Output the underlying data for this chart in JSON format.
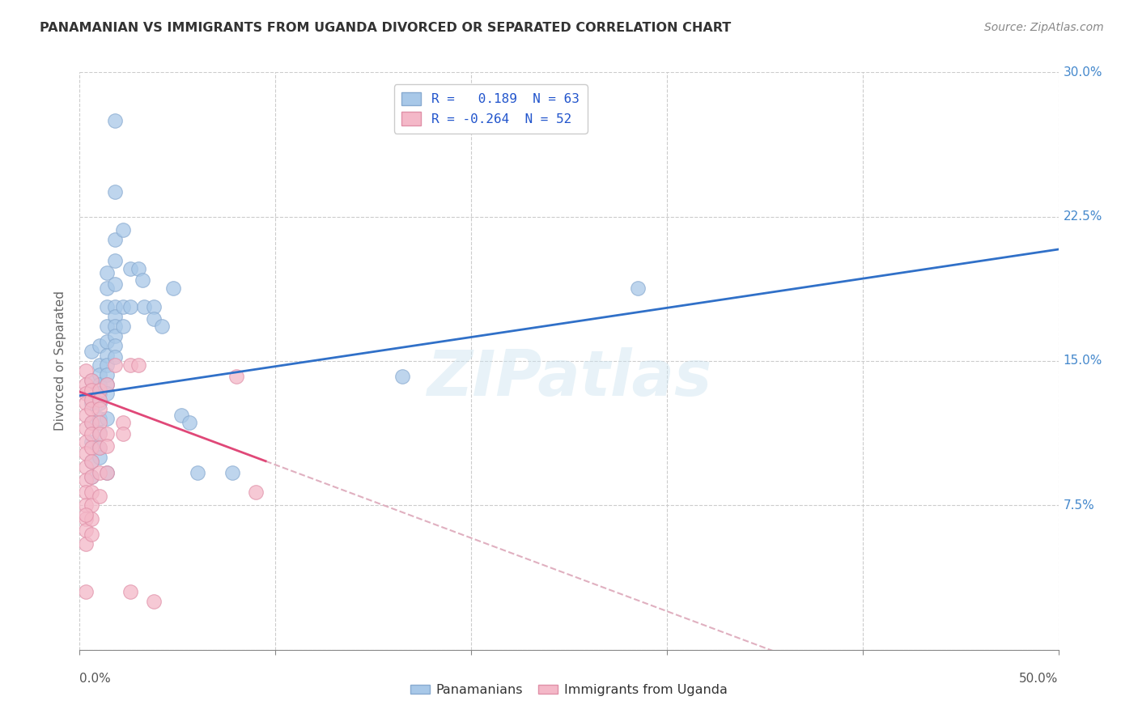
{
  "title": "PANAMANIAN VS IMMIGRANTS FROM UGANDA DIVORCED OR SEPARATED CORRELATION CHART",
  "source": "Source: ZipAtlas.com",
  "ylabel_label": "Divorced or Separated",
  "x_min": 0.0,
  "x_max": 0.5,
  "y_min": 0.0,
  "y_max": 0.3,
  "x_ticks": [
    0.0,
    0.1,
    0.2,
    0.3,
    0.4,
    0.5
  ],
  "x_tick_labels_bottom": [
    "0.0%",
    "",
    "",
    "",
    "",
    "50.0%"
  ],
  "y_ticks": [
    0.0,
    0.075,
    0.15,
    0.225,
    0.3
  ],
  "y_tick_labels_right": [
    "",
    "7.5%",
    "15.0%",
    "22.5%",
    "30.0%"
  ],
  "blue_color": "#a8c8e8",
  "pink_color": "#f4b8c8",
  "blue_edge_color": "#88aad0",
  "pink_edge_color": "#e090a8",
  "blue_line_color": "#3070c8",
  "pink_line_color": "#e04878",
  "pink_dashed_color": "#e0b0c0",
  "watermark": "ZIPatlas",
  "blue_points": [
    [
      0.006,
      0.13
    ],
    [
      0.006,
      0.155
    ],
    [
      0.006,
      0.14
    ],
    [
      0.006,
      0.128
    ],
    [
      0.006,
      0.118
    ],
    [
      0.006,
      0.108
    ],
    [
      0.006,
      0.098
    ],
    [
      0.006,
      0.09
    ],
    [
      0.01,
      0.158
    ],
    [
      0.01,
      0.148
    ],
    [
      0.01,
      0.143
    ],
    [
      0.01,
      0.138
    ],
    [
      0.01,
      0.133
    ],
    [
      0.01,
      0.128
    ],
    [
      0.01,
      0.12
    ],
    [
      0.01,
      0.113
    ],
    [
      0.01,
      0.105
    ],
    [
      0.01,
      0.1
    ],
    [
      0.014,
      0.196
    ],
    [
      0.014,
      0.188
    ],
    [
      0.014,
      0.178
    ],
    [
      0.014,
      0.168
    ],
    [
      0.014,
      0.16
    ],
    [
      0.014,
      0.153
    ],
    [
      0.014,
      0.148
    ],
    [
      0.014,
      0.143
    ],
    [
      0.014,
      0.138
    ],
    [
      0.014,
      0.133
    ],
    [
      0.014,
      0.12
    ],
    [
      0.014,
      0.092
    ],
    [
      0.018,
      0.275
    ],
    [
      0.018,
      0.238
    ],
    [
      0.018,
      0.213
    ],
    [
      0.018,
      0.202
    ],
    [
      0.018,
      0.19
    ],
    [
      0.018,
      0.178
    ],
    [
      0.018,
      0.173
    ],
    [
      0.018,
      0.168
    ],
    [
      0.018,
      0.163
    ],
    [
      0.018,
      0.158
    ],
    [
      0.018,
      0.152
    ],
    [
      0.022,
      0.218
    ],
    [
      0.022,
      0.178
    ],
    [
      0.022,
      0.168
    ],
    [
      0.026,
      0.198
    ],
    [
      0.026,
      0.178
    ],
    [
      0.03,
      0.198
    ],
    [
      0.032,
      0.192
    ],
    [
      0.033,
      0.178
    ],
    [
      0.038,
      0.178
    ],
    [
      0.038,
      0.172
    ],
    [
      0.042,
      0.168
    ],
    [
      0.048,
      0.188
    ],
    [
      0.052,
      0.122
    ],
    [
      0.056,
      0.118
    ],
    [
      0.06,
      0.092
    ],
    [
      0.078,
      0.092
    ],
    [
      0.165,
      0.142
    ],
    [
      0.285,
      0.188
    ]
  ],
  "pink_points": [
    [
      0.003,
      0.145
    ],
    [
      0.003,
      0.138
    ],
    [
      0.003,
      0.133
    ],
    [
      0.003,
      0.128
    ],
    [
      0.003,
      0.122
    ],
    [
      0.003,
      0.115
    ],
    [
      0.003,
      0.108
    ],
    [
      0.003,
      0.102
    ],
    [
      0.003,
      0.095
    ],
    [
      0.003,
      0.088
    ],
    [
      0.003,
      0.082
    ],
    [
      0.003,
      0.075
    ],
    [
      0.003,
      0.068
    ],
    [
      0.003,
      0.062
    ],
    [
      0.003,
      0.055
    ],
    [
      0.003,
      0.03
    ],
    [
      0.006,
      0.14
    ],
    [
      0.006,
      0.135
    ],
    [
      0.006,
      0.13
    ],
    [
      0.006,
      0.125
    ],
    [
      0.006,
      0.118
    ],
    [
      0.006,
      0.112
    ],
    [
      0.006,
      0.105
    ],
    [
      0.006,
      0.098
    ],
    [
      0.006,
      0.09
    ],
    [
      0.006,
      0.082
    ],
    [
      0.006,
      0.075
    ],
    [
      0.006,
      0.068
    ],
    [
      0.01,
      0.135
    ],
    [
      0.01,
      0.13
    ],
    [
      0.01,
      0.125
    ],
    [
      0.01,
      0.118
    ],
    [
      0.01,
      0.112
    ],
    [
      0.01,
      0.105
    ],
    [
      0.01,
      0.092
    ],
    [
      0.014,
      0.138
    ],
    [
      0.014,
      0.112
    ],
    [
      0.014,
      0.106
    ],
    [
      0.018,
      0.148
    ],
    [
      0.022,
      0.118
    ],
    [
      0.022,
      0.112
    ],
    [
      0.026,
      0.148
    ],
    [
      0.03,
      0.148
    ],
    [
      0.026,
      0.03
    ],
    [
      0.038,
      0.025
    ],
    [
      0.08,
      0.142
    ],
    [
      0.09,
      0.082
    ],
    [
      0.003,
      0.07
    ],
    [
      0.006,
      0.06
    ],
    [
      0.01,
      0.08
    ],
    [
      0.014,
      0.092
    ]
  ],
  "blue_trendline": [
    [
      0.0,
      0.132
    ],
    [
      0.5,
      0.208
    ]
  ],
  "pink_trendline_solid": [
    [
      0.0,
      0.134
    ],
    [
      0.095,
      0.098
    ]
  ],
  "pink_trendline_dashed": [
    [
      0.095,
      0.098
    ],
    [
      0.5,
      -0.056
    ]
  ]
}
